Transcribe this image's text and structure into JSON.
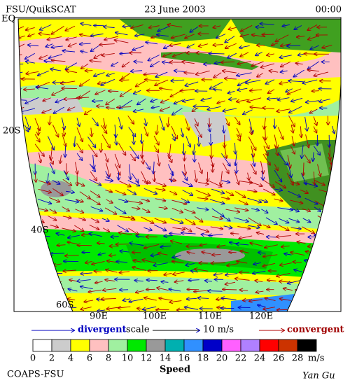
{
  "header": {
    "left": "FSU/QuikSCAT",
    "center": "23 June 2003",
    "right": "00:00"
  },
  "map": {
    "lat_labels": [
      "EQ",
      "20S",
      "40S",
      "60S"
    ],
    "lon_labels": [
      "90E",
      "100E",
      "110E",
      "120E"
    ]
  },
  "legend": {
    "divergent": "divergent",
    "scale": "scale",
    "magnitude": "10 m/s",
    "convergent": "convergent"
  },
  "colorbar": {
    "ticks": [
      0,
      2,
      4,
      6,
      8,
      10,
      12,
      14,
      16,
      18,
      20,
      22,
      24,
      26,
      28
    ],
    "colors": [
      "#ffffff",
      "#cccccc",
      "#ffff00",
      "#ffc0c0",
      "#a0f0a0",
      "#00e800",
      "#999999",
      "#00b0b0",
      "#3090ff",
      "#0000c8",
      "#ff60ff",
      "#b080ff",
      "#ff0000",
      "#cc3300",
      "#000000"
    ],
    "unit": "m/s",
    "label": "Speed"
  },
  "footer": {
    "left": "COAPS-FSU",
    "right": "Yan Gu"
  }
}
